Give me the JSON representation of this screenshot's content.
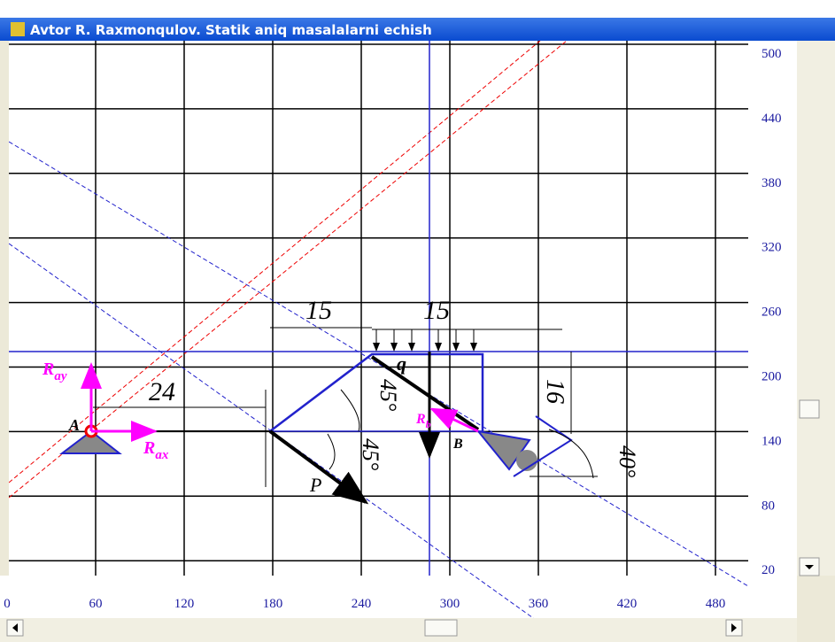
{
  "window": {
    "title": "Avtor R. Raxmonqulov. Statik aniq masalalarni echish"
  },
  "axes": {
    "yticks": [
      500,
      440,
      380,
      320,
      260,
      200,
      140,
      80,
      20
    ],
    "xticks": [
      0,
      60,
      120,
      180,
      240,
      300,
      360,
      420,
      480
    ],
    "xlim": [
      0,
      500
    ],
    "ylim": [
      0,
      500
    ]
  },
  "drawing": {
    "points": [
      "A",
      "B"
    ],
    "force": "P",
    "load": "q",
    "reactions": [
      {
        "symbol": "R",
        "sub": "ay"
      },
      {
        "symbol": "R",
        "sub": "ax"
      },
      {
        "symbol": "R",
        "sub": "b"
      }
    ],
    "dimensions": [
      "15",
      "15",
      "24",
      "16"
    ],
    "angles": [
      "45°",
      "45°",
      "40°"
    ]
  }
}
